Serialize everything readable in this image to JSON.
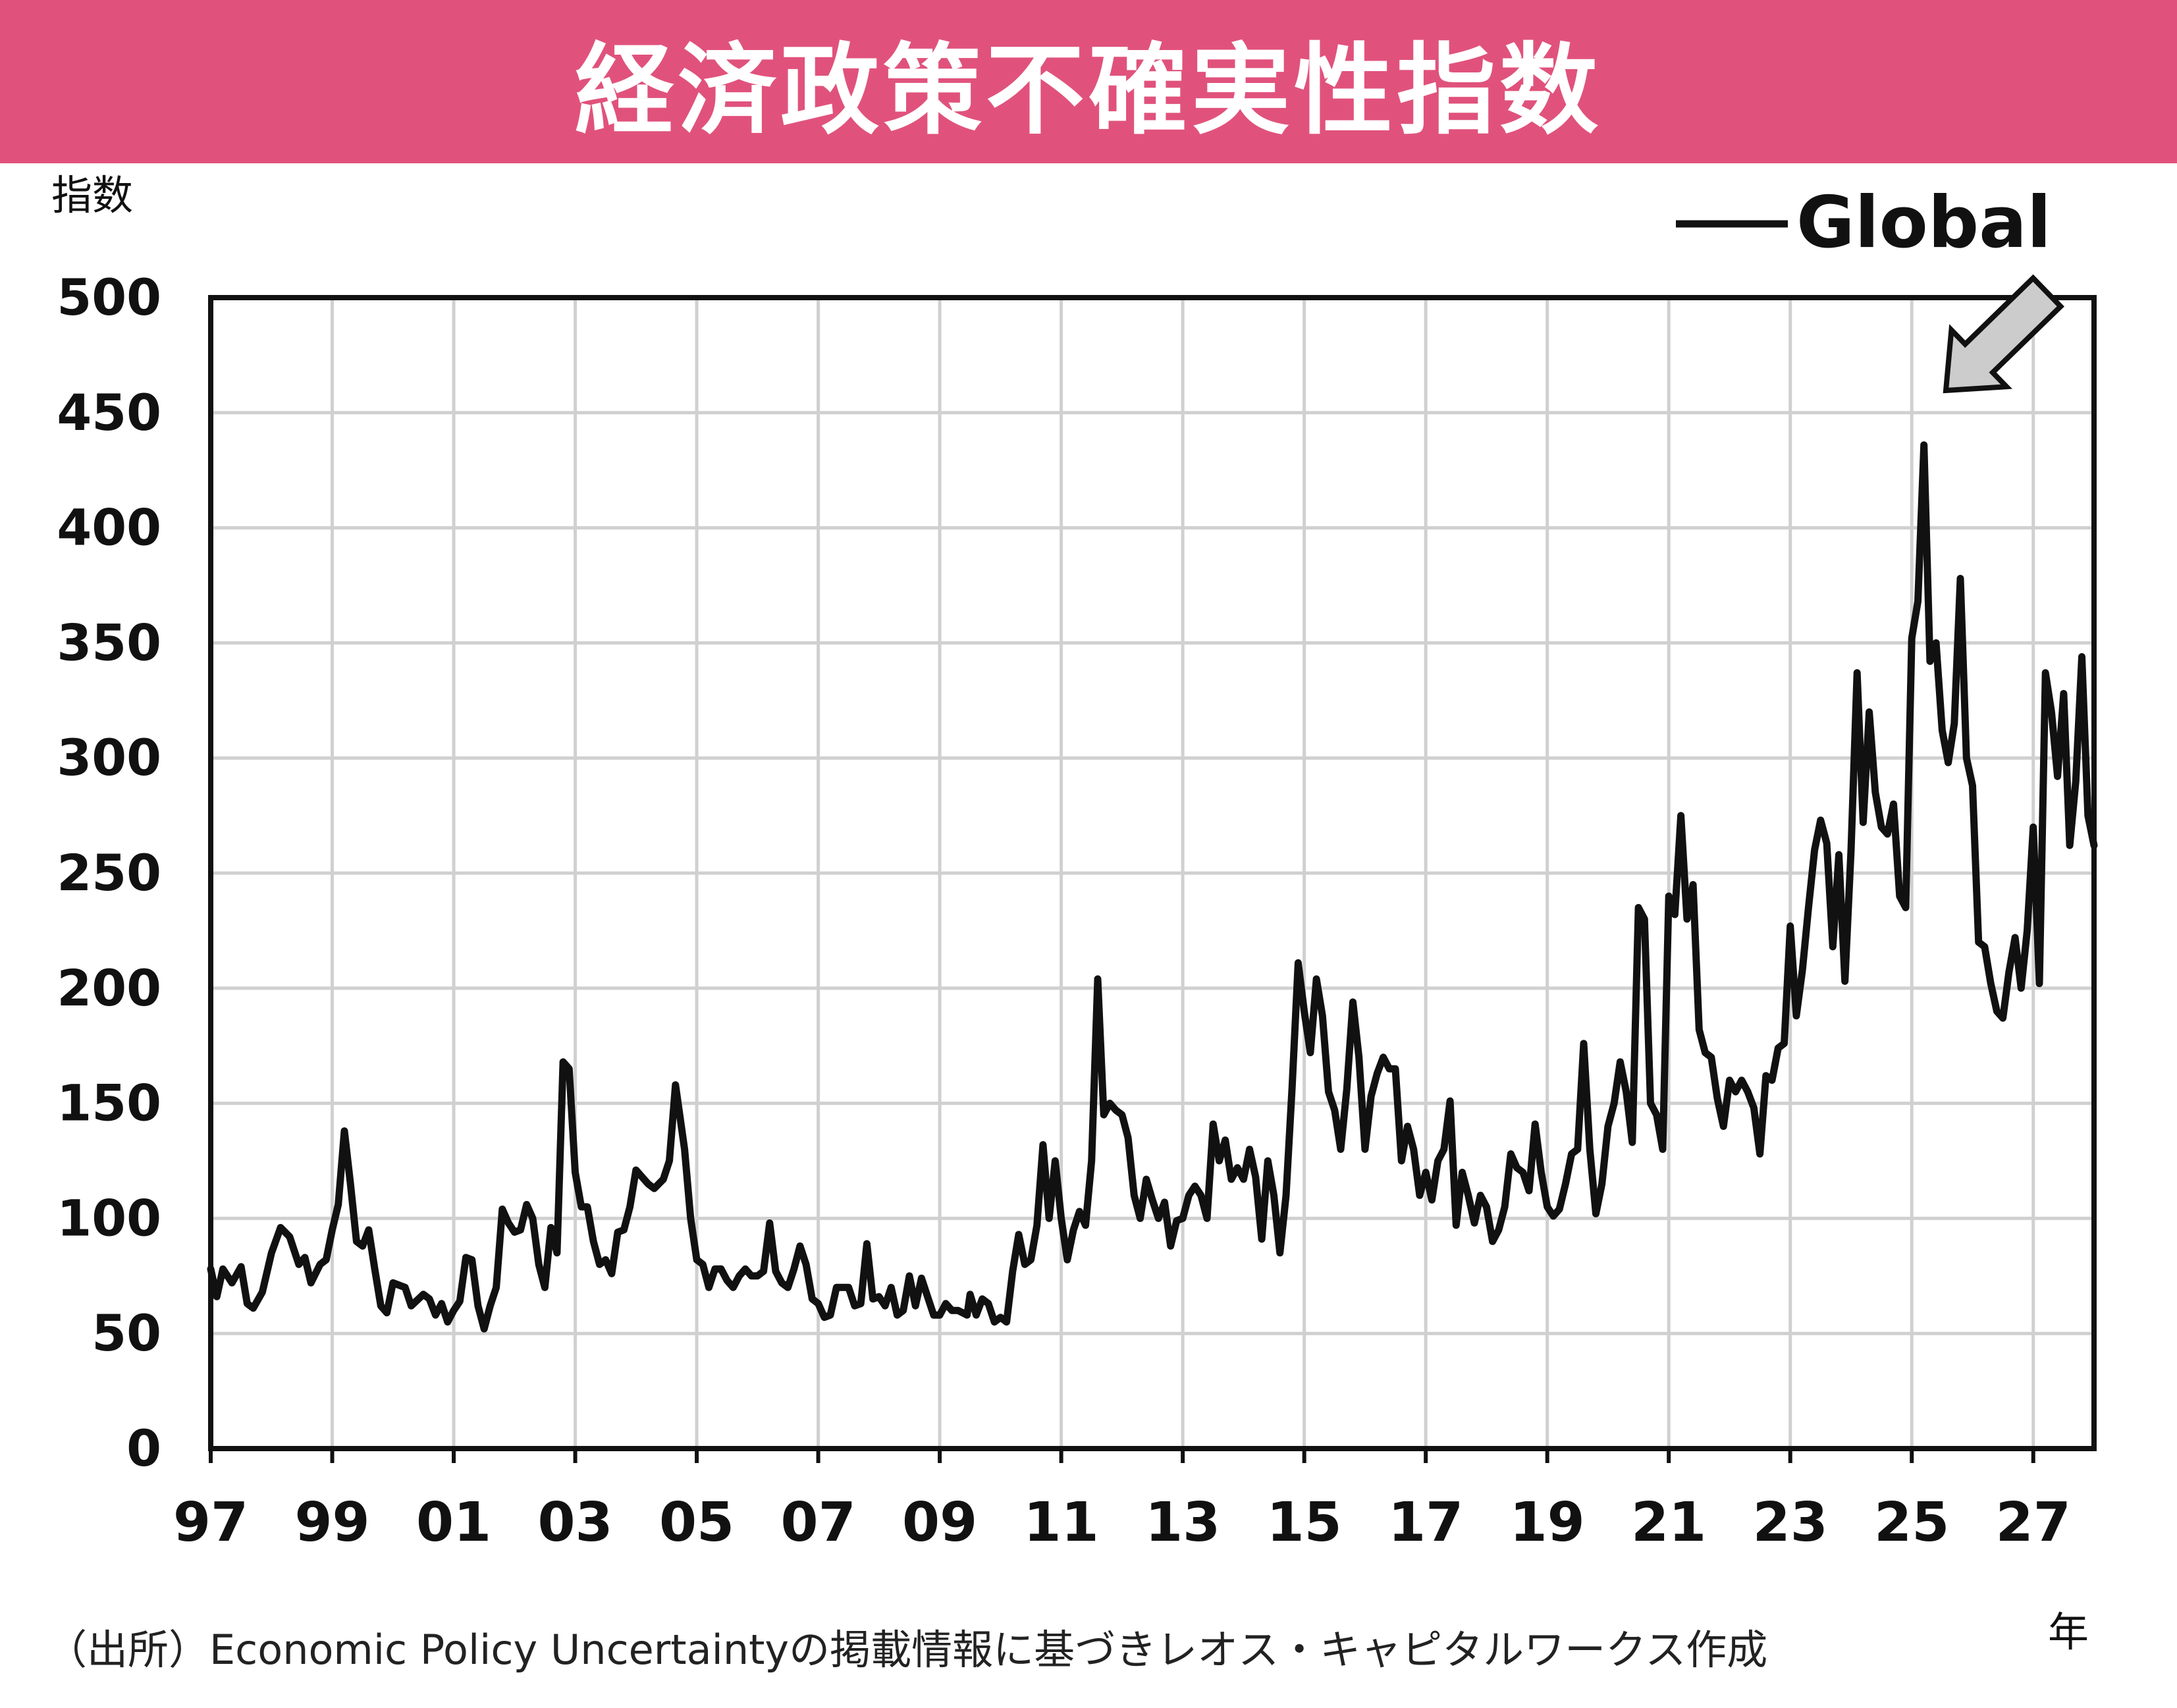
{
  "title": "経済政策不確実性指数",
  "y_unit": "指数",
  "x_unit": "年",
  "source": "（出所）Economic Policy Uncertaintyの掲載情報に基づきレオス・キャピタルワークス作成",
  "colors": {
    "banner": "#e0527c",
    "line": "#111111",
    "grid": "#d0d0d0",
    "arrow_fill": "#cccccc"
  },
  "chart_data": {
    "type": "line",
    "title": "経済政策不確実性指数",
    "xlabel": "年",
    "ylabel": "指数",
    "xlim": [
      1997,
      2028
    ],
    "ylim": [
      0,
      500
    ],
    "x_ticks": [
      "97",
      "99",
      "01",
      "03",
      "05",
      "07",
      "09",
      "11",
      "13",
      "15",
      "17",
      "19",
      "21",
      "23",
      "25",
      "27"
    ],
    "y_ticks": [
      0,
      50,
      100,
      150,
      200,
      250,
      300,
      350,
      400,
      450,
      500
    ],
    "grid": true,
    "legend": "top-right",
    "annotation": "arrow pointing to latest value",
    "series": [
      {
        "name": "Global",
        "points": [
          [
            1997.0,
            78
          ],
          [
            1997.1,
            66
          ],
          [
            1997.2,
            78
          ],
          [
            1997.35,
            72
          ],
          [
            1997.5,
            79
          ],
          [
            1997.6,
            63
          ],
          [
            1997.7,
            61
          ],
          [
            1997.85,
            68
          ],
          [
            1998.0,
            85
          ],
          [
            1998.15,
            96
          ],
          [
            1998.3,
            92
          ],
          [
            1998.45,
            80
          ],
          [
            1998.55,
            83
          ],
          [
            1998.65,
            72
          ],
          [
            1998.8,
            80
          ],
          [
            1998.9,
            82
          ],
          [
            1999.0,
            95
          ],
          [
            1999.1,
            106
          ],
          [
            1999.2,
            138
          ],
          [
            1999.3,
            115
          ],
          [
            1999.4,
            90
          ],
          [
            1999.5,
            88
          ],
          [
            1999.6,
            95
          ],
          [
            1999.7,
            78
          ],
          [
            1999.8,
            62
          ],
          [
            1999.9,
            59
          ],
          [
            2000.0,
            72
          ],
          [
            2000.2,
            70
          ],
          [
            2000.3,
            62
          ],
          [
            2000.5,
            67
          ],
          [
            2000.6,
            65
          ],
          [
            2000.7,
            58
          ],
          [
            2000.8,
            63
          ],
          [
            2000.9,
            55
          ],
          [
            2001.0,
            60
          ],
          [
            2001.1,
            64
          ],
          [
            2001.2,
            83
          ],
          [
            2001.3,
            82
          ],
          [
            2001.4,
            62
          ],
          [
            2001.5,
            52
          ],
          [
            2001.6,
            62
          ],
          [
            2001.7,
            70
          ],
          [
            2001.8,
            104
          ],
          [
            2001.9,
            98
          ],
          [
            2002.0,
            94
          ],
          [
            2002.1,
            95
          ],
          [
            2002.2,
            106
          ],
          [
            2002.3,
            100
          ],
          [
            2002.4,
            80
          ],
          [
            2002.5,
            70
          ],
          [
            2002.6,
            96
          ],
          [
            2002.7,
            85
          ],
          [
            2002.8,
            168
          ],
          [
            2002.9,
            165
          ],
          [
            2003.0,
            120
          ],
          [
            2003.1,
            105
          ],
          [
            2003.2,
            105
          ],
          [
            2003.3,
            90
          ],
          [
            2003.4,
            80
          ],
          [
            2003.5,
            82
          ],
          [
            2003.6,
            76
          ],
          [
            2003.7,
            94
          ],
          [
            2003.8,
            95
          ],
          [
            2003.9,
            105
          ],
          [
            2004.0,
            121
          ],
          [
            2004.1,
            118
          ],
          [
            2004.2,
            115
          ],
          [
            2004.3,
            113
          ],
          [
            2004.45,
            117
          ],
          [
            2004.55,
            125
          ],
          [
            2004.65,
            158
          ],
          [
            2004.8,
            130
          ],
          [
            2004.9,
            100
          ],
          [
            2005.0,
            82
          ],
          [
            2005.1,
            80
          ],
          [
            2005.2,
            70
          ],
          [
            2005.3,
            78
          ],
          [
            2005.4,
            78
          ],
          [
            2005.5,
            73
          ],
          [
            2005.6,
            70
          ],
          [
            2005.7,
            75
          ],
          [
            2005.8,
            78
          ],
          [
            2005.9,
            75
          ],
          [
            2006.0,
            75
          ],
          [
            2006.1,
            77
          ],
          [
            2006.2,
            98
          ],
          [
            2006.3,
            77
          ],
          [
            2006.4,
            72
          ],
          [
            2006.5,
            70
          ],
          [
            2006.6,
            78
          ],
          [
            2006.7,
            88
          ],
          [
            2006.8,
            80
          ],
          [
            2006.9,
            65
          ],
          [
            2007.0,
            63
          ],
          [
            2007.1,
            57
          ],
          [
            2007.2,
            58
          ],
          [
            2007.3,
            70
          ],
          [
            2007.4,
            70
          ],
          [
            2007.5,
            70
          ],
          [
            2007.6,
            62
          ],
          [
            2007.7,
            63
          ],
          [
            2007.8,
            89
          ],
          [
            2007.9,
            65
          ],
          [
            2008.0,
            66
          ],
          [
            2008.1,
            62
          ],
          [
            2008.2,
            70
          ],
          [
            2008.3,
            58
          ],
          [
            2008.4,
            60
          ],
          [
            2008.5,
            75
          ],
          [
            2008.6,
            62
          ],
          [
            2008.7,
            74
          ],
          [
            2008.8,
            66
          ],
          [
            2008.9,
            58
          ],
          [
            2009.0,
            58
          ],
          [
            2009.1,
            63
          ],
          [
            2009.2,
            60
          ],
          [
            2009.3,
            60
          ],
          [
            2009.45,
            58
          ],
          [
            2009.5,
            67
          ],
          [
            2009.6,
            58
          ],
          [
            2009.7,
            65
          ],
          [
            2009.8,
            63
          ],
          [
            2009.9,
            55
          ],
          [
            2010.0,
            57
          ],
          [
            2010.1,
            55
          ],
          [
            2010.2,
            77
          ],
          [
            2010.3,
            93
          ],
          [
            2010.4,
            80
          ],
          [
            2010.5,
            82
          ],
          [
            2010.6,
            97
          ],
          [
            2010.7,
            132
          ],
          [
            2010.8,
            100
          ],
          [
            2010.9,
            125
          ],
          [
            2011.0,
            100
          ],
          [
            2011.1,
            82
          ],
          [
            2011.2,
            95
          ],
          [
            2011.3,
            103
          ],
          [
            2011.4,
            97
          ],
          [
            2011.5,
            125
          ],
          [
            2011.6,
            204
          ],
          [
            2011.7,
            145
          ],
          [
            2011.8,
            150
          ],
          [
            2011.9,
            147
          ],
          [
            2012.0,
            145
          ],
          [
            2012.1,
            135
          ],
          [
            2012.2,
            110
          ],
          [
            2012.3,
            100
          ],
          [
            2012.4,
            117
          ],
          [
            2012.5,
            108
          ],
          [
            2012.6,
            100
          ],
          [
            2012.7,
            107
          ],
          [
            2012.8,
            88
          ],
          [
            2012.9,
            99
          ],
          [
            2013.0,
            100
          ],
          [
            2013.1,
            110
          ],
          [
            2013.2,
            114
          ],
          [
            2013.3,
            110
          ],
          [
            2013.4,
            100
          ],
          [
            2013.5,
            141
          ],
          [
            2013.6,
            125
          ],
          [
            2013.7,
            134
          ],
          [
            2013.8,
            117
          ],
          [
            2013.9,
            122
          ],
          [
            2014.0,
            117
          ],
          [
            2014.1,
            130
          ],
          [
            2014.2,
            118
          ],
          [
            2014.3,
            91
          ],
          [
            2014.4,
            125
          ],
          [
            2014.5,
            110
          ],
          [
            2014.6,
            85
          ],
          [
            2014.7,
            110
          ],
          [
            2014.8,
            157
          ],
          [
            2014.9,
            211
          ],
          [
            2015.0,
            190
          ],
          [
            2015.1,
            172
          ],
          [
            2015.2,
            204
          ],
          [
            2015.3,
            188
          ],
          [
            2015.4,
            155
          ],
          [
            2015.5,
            147
          ],
          [
            2015.6,
            130
          ],
          [
            2015.7,
            156
          ],
          [
            2015.8,
            194
          ],
          [
            2015.9,
            170
          ],
          [
            2016.0,
            130
          ],
          [
            2016.1,
            153
          ],
          [
            2016.2,
            163
          ],
          [
            2016.3,
            170
          ],
          [
            2016.4,
            165
          ],
          [
            2016.5,
            165
          ],
          [
            2016.6,
            125
          ],
          [
            2016.7,
            140
          ],
          [
            2016.8,
            130
          ],
          [
            2016.9,
            110
          ],
          [
            2017.0,
            120
          ],
          [
            2017.1,
            108
          ],
          [
            2017.2,
            125
          ],
          [
            2017.3,
            130
          ],
          [
            2017.4,
            151
          ],
          [
            2017.5,
            97
          ],
          [
            2017.6,
            120
          ],
          [
            2017.7,
            110
          ],
          [
            2017.8,
            98
          ],
          [
            2017.9,
            110
          ],
          [
            2018.0,
            105
          ],
          [
            2018.1,
            90
          ],
          [
            2018.2,
            95
          ],
          [
            2018.3,
            105
          ],
          [
            2018.4,
            128
          ],
          [
            2018.5,
            122
          ],
          [
            2018.6,
            120
          ],
          [
            2018.7,
            112
          ],
          [
            2018.8,
            141
          ],
          [
            2018.9,
            120
          ],
          [
            2019.0,
            105
          ],
          [
            2019.1,
            101
          ],
          [
            2019.2,
            104
          ],
          [
            2019.3,
            115
          ],
          [
            2019.4,
            128
          ],
          [
            2019.5,
            130
          ],
          [
            2019.6,
            176
          ],
          [
            2019.7,
            130
          ],
          [
            2019.8,
            102
          ],
          [
            2019.9,
            115
          ],
          [
            2020.0,
            140
          ],
          [
            2020.1,
            150
          ],
          [
            2020.2,
            168
          ],
          [
            2020.3,
            155
          ],
          [
            2020.4,
            133
          ],
          [
            2020.5,
            235
          ],
          [
            2020.6,
            230
          ],
          [
            2020.7,
            150
          ],
          [
            2020.8,
            145
          ],
          [
            2020.9,
            130
          ],
          [
            2021.0,
            240
          ],
          [
            2021.1,
            232
          ],
          [
            2021.2,
            275
          ],
          [
            2021.3,
            230
          ],
          [
            2021.4,
            245
          ],
          [
            2021.5,
            182
          ],
          [
            2021.6,
            172
          ],
          [
            2021.7,
            170
          ],
          [
            2021.8,
            152
          ],
          [
            2021.9,
            140
          ],
          [
            2022.0,
            160
          ],
          [
            2022.1,
            155
          ],
          [
            2022.2,
            160
          ],
          [
            2022.3,
            155
          ],
          [
            2022.4,
            148
          ],
          [
            2022.5,
            128
          ],
          [
            2022.6,
            162
          ],
          [
            2022.7,
            160
          ],
          [
            2022.8,
            174
          ],
          [
            2022.9,
            176
          ],
          [
            2023.0,
            227
          ],
          [
            2023.1,
            188
          ],
          [
            2023.2,
            208
          ],
          [
            2023.3,
            235
          ],
          [
            2023.4,
            260
          ],
          [
            2023.5,
            273
          ],
          [
            2023.6,
            263
          ],
          [
            2023.7,
            218
          ],
          [
            2023.8,
            258
          ],
          [
            2023.9,
            203
          ],
          [
            2024.0,
            260
          ],
          [
            2024.1,
            337
          ],
          [
            2024.2,
            272
          ],
          [
            2024.3,
            320
          ],
          [
            2024.4,
            285
          ],
          [
            2024.5,
            270
          ],
          [
            2024.6,
            267
          ],
          [
            2024.7,
            280
          ],
          [
            2024.8,
            240
          ],
          [
            2024.9,
            235
          ],
          [
            2025.0,
            352
          ],
          [
            2025.1,
            368
          ],
          [
            2025.2,
            436
          ],
          [
            2025.3,
            342
          ],
          [
            2025.4,
            350
          ],
          [
            2025.5,
            312
          ],
          [
            2025.6,
            298
          ],
          [
            2025.7,
            315
          ],
          [
            2025.8,
            378
          ],
          [
            2025.9,
            300
          ],
          [
            2026.0,
            288
          ],
          [
            2026.1,
            220
          ],
          [
            2026.2,
            218
          ],
          [
            2026.3,
            202
          ],
          [
            2026.4,
            190
          ],
          [
            2026.5,
            187
          ],
          [
            2026.6,
            207
          ],
          [
            2026.7,
            222
          ],
          [
            2026.8,
            200
          ],
          [
            2026.9,
            225
          ],
          [
            2027.0,
            270
          ],
          [
            2027.1,
            202
          ],
          [
            2027.2,
            337
          ],
          [
            2027.3,
            320
          ],
          [
            2027.4,
            292
          ],
          [
            2027.5,
            328
          ],
          [
            2027.6,
            262
          ],
          [
            2027.7,
            290
          ],
          [
            2027.8,
            344
          ],
          [
            2027.9,
            275
          ],
          [
            2028.0,
            262
          ]
        ]
      }
    ]
  }
}
